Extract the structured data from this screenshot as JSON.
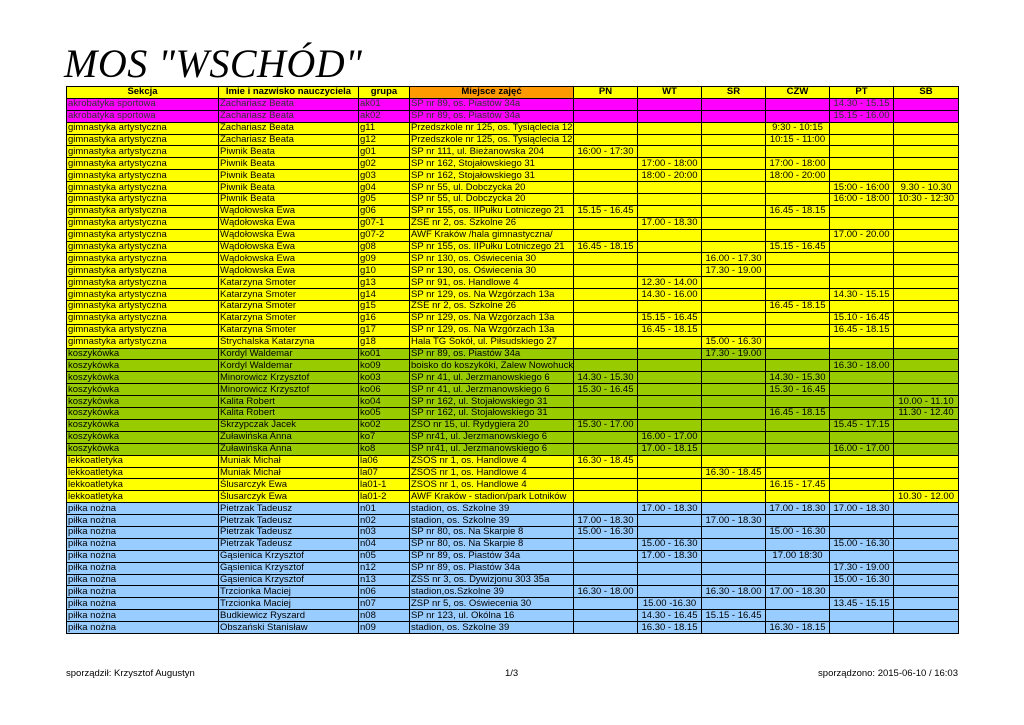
{
  "title": "MOS \"WSCHÓD\"",
  "columns": [
    "Sekcja",
    "Imie i nazwisko nauczyciela",
    "grupa",
    "Miejsce zajęć",
    "PN",
    "WT",
    "ŚR",
    "CZW",
    "PT",
    "SB"
  ],
  "rows": [
    {
      "color": "pink",
      "cells": [
        "akrobatyka sportowa",
        "Zachariasz Beata",
        "ak01",
        "SP nr 89, os. Piastów 34a",
        "",
        "",
        "",
        "",
        "14.30 - 15.15",
        ""
      ]
    },
    {
      "color": "pink",
      "cells": [
        "akrobatyka sportowa",
        "Zachariasz Beata",
        "ak02",
        "SP nr 89, os. Piastów 34a",
        "",
        "",
        "",
        "",
        "15.15 - 16.00",
        ""
      ]
    },
    {
      "color": "yellow",
      "cells": [
        "gimnastyka artystyczna",
        "Zachariasz Beata",
        "g11",
        "Przedszkole nr 125, os. Tysiąclecia 12",
        "",
        "",
        "",
        "9:30 - 10:15",
        "",
        ""
      ]
    },
    {
      "color": "yellow",
      "cells": [
        "gimnastyka artystyczna",
        "Zachariasz Beata",
        "g12",
        "Przedszkole nr 125, os. Tysiąclecia 12",
        "",
        "",
        "",
        "10:15 - 11:00",
        "",
        ""
      ]
    },
    {
      "color": "yellow",
      "cells": [
        "gimnastyka artystyczna",
        "Piwnik Beata",
        "g01",
        "SP nr 111, ul. Bieżanowska 204",
        "16:00 - 17:30",
        "",
        "",
        "",
        "",
        ""
      ]
    },
    {
      "color": "yellow",
      "cells": [
        "gimnastyka artystyczna",
        "Piwnik Beata",
        "g02",
        "SP nr 162, Stojałowskiego 31",
        "",
        "17:00 - 18:00",
        "",
        "17:00 - 18:00",
        "",
        ""
      ]
    },
    {
      "color": "yellow",
      "cells": [
        "gimnastyka artystyczna",
        "Piwnik Beata",
        "g03",
        "SP nr 162, Stojałowskiego 31",
        "",
        "18:00 - 20:00",
        "",
        "18:00 - 20:00",
        "",
        ""
      ]
    },
    {
      "color": "yellow",
      "cells": [
        "gimnastyka artystyczna",
        "Piwnik Beata",
        "g04",
        "SP nr 55, ul. Dobczycka 20",
        "",
        "",
        "",
        "",
        "15:00 - 16:00",
        "9.30 - 10.30"
      ]
    },
    {
      "color": "yellow",
      "cells": [
        "gimnastyka artystyczna",
        "Piwnik Beata",
        "g05",
        "SP nr 55, ul. Dobczycka 20",
        "",
        "",
        "",
        "",
        "16:00 - 18:00",
        "10:30 - 12:30"
      ]
    },
    {
      "color": "yellow",
      "cells": [
        "gimnastyka artystyczna",
        "Wądołowska Ewa",
        "g06",
        "SP nr 155, os. IIPułku Lotniczego 21",
        "15.15 - 16.45",
        "",
        "",
        "16.45 - 18.15",
        "",
        ""
      ]
    },
    {
      "color": "yellow",
      "cells": [
        "gimnastyka artystyczna",
        "Wądołowska Ewa",
        "g07-1",
        "ZSE nr 2, os. Szkolne 26",
        "",
        "17.00 - 18.30",
        "",
        "",
        "",
        ""
      ]
    },
    {
      "color": "yellow",
      "cells": [
        "gimnastyka artystyczna",
        "Wądołowska Ewa",
        "g07-2",
        "AWF Kraków /hala gimnastyczna/",
        "",
        "",
        "",
        "",
        "17.00 - 20.00",
        ""
      ]
    },
    {
      "color": "yellow",
      "cells": [
        "gimnastyka artystyczna",
        "Wądołowska Ewa",
        "g08",
        "SP nr 155, os. IIPułku Lotniczego 21",
        "16.45 - 18.15",
        "",
        "",
        "15.15 - 16.45",
        "",
        ""
      ]
    },
    {
      "color": "yellow",
      "cells": [
        "gimnastyka artystyczna",
        "Wądołowska Ewa",
        "g09",
        "SP nr 130, os. Oświecenia 30",
        "",
        "",
        "16.00 - 17.30",
        "",
        "",
        ""
      ]
    },
    {
      "color": "yellow",
      "cells": [
        "gimnastyka artystyczna",
        "Wądołowska Ewa",
        "g10",
        "SP nr 130, os. Oświecenia 30",
        "",
        "",
        "17.30 - 19.00",
        "",
        "",
        ""
      ]
    },
    {
      "color": "yellow",
      "cells": [
        "gimnastyka artystyczna",
        "Katarzyna Smoter",
        "g13",
        "SP nr 91, os. Handlowe 4",
        "",
        "12.30 - 14.00",
        "",
        "",
        "",
        ""
      ]
    },
    {
      "color": "yellow",
      "cells": [
        "gimnastyka artystyczna",
        "Katarzyna Smoter",
        "g14",
        "SP nr 129, os. Na Wzgórzach 13a",
        "",
        "14.30 - 16.00",
        "",
        "",
        "14.30 - 15.15",
        ""
      ]
    },
    {
      "color": "yellow",
      "cells": [
        "gimnastyka artystyczna",
        "Katarzyna Smoter",
        "g15",
        "ZSE nr 2, os. Szkolne 26",
        "",
        "",
        "",
        "16.45 - 18.15",
        "",
        ""
      ]
    },
    {
      "color": "yellow",
      "cells": [
        "gimnastyka artystyczna",
        "Katarzyna Smoter",
        "g16",
        "SP nr 129, os. Na Wzgórzach 13a",
        "",
        "15.15 - 16.45",
        "",
        "",
        "15.10 - 16.45",
        ""
      ]
    },
    {
      "color": "yellow",
      "cells": [
        "gimnastyka artystyczna",
        "Katarzyna Smoter",
        "g17",
        "SP nr 129, os. Na Wzgórzach 13a",
        "",
        "16.45 - 18.15",
        "",
        "",
        "16.45 - 18.15",
        ""
      ]
    },
    {
      "color": "yellow",
      "cells": [
        "gimnastyka artystyczna",
        "Strychalska Katarzyna",
        "g18",
        "Hala TG Sokół, ul. Piłsudskiego 27",
        "",
        "",
        "15.00 - 16.30",
        "",
        "",
        ""
      ]
    },
    {
      "color": "green",
      "cells": [
        "koszykówka",
        "Kordyl Waldemar",
        "ko01",
        "SP nr 89, os. Piastów 34a",
        "",
        "",
        "17.30 - 19.00",
        "",
        "",
        ""
      ]
    },
    {
      "color": "green",
      "cells": [
        "koszykówka",
        "Kordyl Waldemar",
        "ko09",
        "boisko do koszykóki, Zalew Nowohucki",
        "",
        "",
        "",
        "",
        "16.30 - 18.00",
        ""
      ]
    },
    {
      "color": "green",
      "cells": [
        "koszykówka",
        "Minorowicz Krzysztof",
        "ko03",
        "SP nr 41, ul. Jerzmanowskiego 6",
        "14.30 - 15.30",
        "",
        "",
        "14.30 - 15.30",
        "",
        ""
      ]
    },
    {
      "color": "green",
      "cells": [
        "koszykówka",
        "Minorowicz Krzysztof",
        "ko06",
        "SP nr 41, ul. Jerzmanowskiego 6",
        "15.30 - 16.45",
        "",
        "",
        "15.30 - 16.45",
        "",
        ""
      ]
    },
    {
      "color": "green",
      "cells": [
        "koszykówka",
        "Kalita Robert",
        "ko04",
        "SP nr 162, ul. Stojałowskiego 31",
        "",
        "",
        "",
        "",
        "",
        "10.00 - 11.10"
      ]
    },
    {
      "color": "green",
      "cells": [
        "koszykówka",
        "Kalita Robert",
        "ko05",
        "SP nr 162, ul. Stojałowskiego 31",
        "",
        "",
        "",
        "16.45 - 18.15",
        "",
        "11.30 - 12.40"
      ]
    },
    {
      "color": "green",
      "cells": [
        "koszykówka",
        "Skrzypczak Jacek",
        "ko02",
        "ZSO nr 15, ul. Rydygiera 20",
        "15.30 - 17.00",
        "",
        "",
        "",
        "15.45 - 17.15",
        ""
      ]
    },
    {
      "color": "green",
      "cells": [
        "koszykówka",
        "Żuławińska Anna",
        "ko7",
        "SP nr41, ul. Jerzmanowskiego 6",
        "",
        "16.00 - 17.00",
        "",
        "",
        "",
        ""
      ]
    },
    {
      "color": "green",
      "cells": [
        "koszykówka",
        "Żuławińska Anna",
        "ko8",
        "SP nr41, ul. Jerzmanowskiego 6",
        "",
        "17.00 - 18.15",
        "",
        "",
        "16.00 - 17.00",
        ""
      ]
    },
    {
      "color": "yellow",
      "cells": [
        "lekkoatletyka",
        "Muniak Michał",
        "la06",
        "ZSOS nr 1, os. Handlowe 4",
        "16.30 - 18.45",
        "",
        "",
        "",
        "",
        ""
      ]
    },
    {
      "color": "yellow",
      "cells": [
        "lekkoatletyka",
        "Muniak Michał",
        "la07",
        "ZSOS nr 1, os. Handlowe 4",
        "",
        "",
        "16.30 - 18.45",
        "",
        "",
        ""
      ]
    },
    {
      "color": "yellow",
      "cells": [
        "lekkoatletyka",
        "Ślusarczyk Ewa",
        "la01-1",
        "ZSOS nr 1, os. Handlowe 4",
        "",
        "",
        "",
        "16.15 - 17.45",
        "",
        ""
      ]
    },
    {
      "color": "yellow",
      "cells": [
        "lekkoatletyka",
        "Ślusarczyk Ewa",
        "la01-2",
        "AWF Kraków - stadion/park Lotników",
        "",
        "",
        "",
        "",
        "",
        "10.30 - 12.00"
      ]
    },
    {
      "color": "blue",
      "cells": [
        "piłka nożna",
        "Pietrzak Tadeusz",
        "n01",
        "stadion, os. Szkolne 39",
        "",
        "17.00 - 18.30",
        "",
        "17.00 - 18.30",
        "17.00 - 18.30",
        ""
      ]
    },
    {
      "color": "blue",
      "cells": [
        "piłka nożna",
        "Pietrzak Tadeusz",
        "n02",
        "stadion, os. Szkolne 39",
        "17.00 - 18.30",
        "",
        "17.00 - 18.30",
        "",
        "",
        ""
      ]
    },
    {
      "color": "blue",
      "cells": [
        "piłka nożna",
        "Pietrzak Tadeusz",
        "n03",
        "SP nr 80, os. Na Skarpie 8",
        "15.00 - 16.30",
        "",
        "",
        "15.00 - 16.30",
        "",
        ""
      ]
    },
    {
      "color": "blue",
      "cells": [
        "piłka nożna",
        "Pietrzak Tadeusz",
        "n04",
        "SP nr 80, os. Na Skarpie 8",
        "",
        "15.00 - 16.30",
        "",
        "",
        "15.00 - 16.30",
        ""
      ]
    },
    {
      "color": "blue",
      "cells": [
        "piłka nożna",
        "Gąsienica Krzysztof",
        "n05",
        "SP nr 89, os. Piastów 34a",
        "",
        "17.00 - 18.30",
        "",
        "17.00 18:30",
        "",
        ""
      ]
    },
    {
      "color": "blue",
      "cells": [
        "piłka nożna",
        "Gąsienica Krzysztof",
        "n12",
        "SP nr 89, os. Piastów 34a",
        "",
        "",
        "",
        "",
        "17.30 - 19.00",
        ""
      ]
    },
    {
      "color": "blue",
      "cells": [
        "piłka nożna",
        "Gąsienica Krzysztof",
        "n13",
        "ZSS nr 3, os. Dywizjonu 303 35a",
        "",
        "",
        "",
        "",
        "15.00 - 16.30",
        ""
      ]
    },
    {
      "color": "blue",
      "cells": [
        "piłka nożna",
        "Trzcionka Maciej",
        "n06",
        "stadion,os.Szkolne 39",
        "16.30 - 18.00",
        "",
        "16.30 - 18.00",
        "17.00 - 18.30",
        "",
        ""
      ]
    },
    {
      "color": "blue",
      "cells": [
        "piłka nożna",
        "Trzcionka Maciej",
        "n07",
        "ZSP nr 5, os. Oświecenia 30",
        "",
        "15.00 -16.30",
        "",
        "",
        "13.45 - 15.15",
        ""
      ]
    },
    {
      "color": "blue",
      "cells": [
        "piłka nożna",
        "Budkiewicz Ryszard",
        "n08",
        "SP nr 123, ul. Okólna 16",
        "",
        "14.30 - 16.45",
        "15.15 - 16.45",
        "",
        "",
        ""
      ]
    },
    {
      "color": "blue",
      "cells": [
        "piłka nożna",
        "Obszański Stanisław",
        "n09",
        "stadion, os. Szkolne 39",
        "",
        "16.30 - 18.15",
        "",
        "16.30 - 18.15",
        "",
        ""
      ]
    }
  ],
  "footer": {
    "author": "sporządził: Krzysztof Augustyn",
    "page": "1/3",
    "date": "sporządzono: 2015-06-10 / 16:03"
  },
  "colors": {
    "pink": "#ff00ff",
    "yellow": "#ffff00",
    "green": "#99cc00",
    "blue": "#99ccff",
    "header_orange": "#ff9900"
  }
}
